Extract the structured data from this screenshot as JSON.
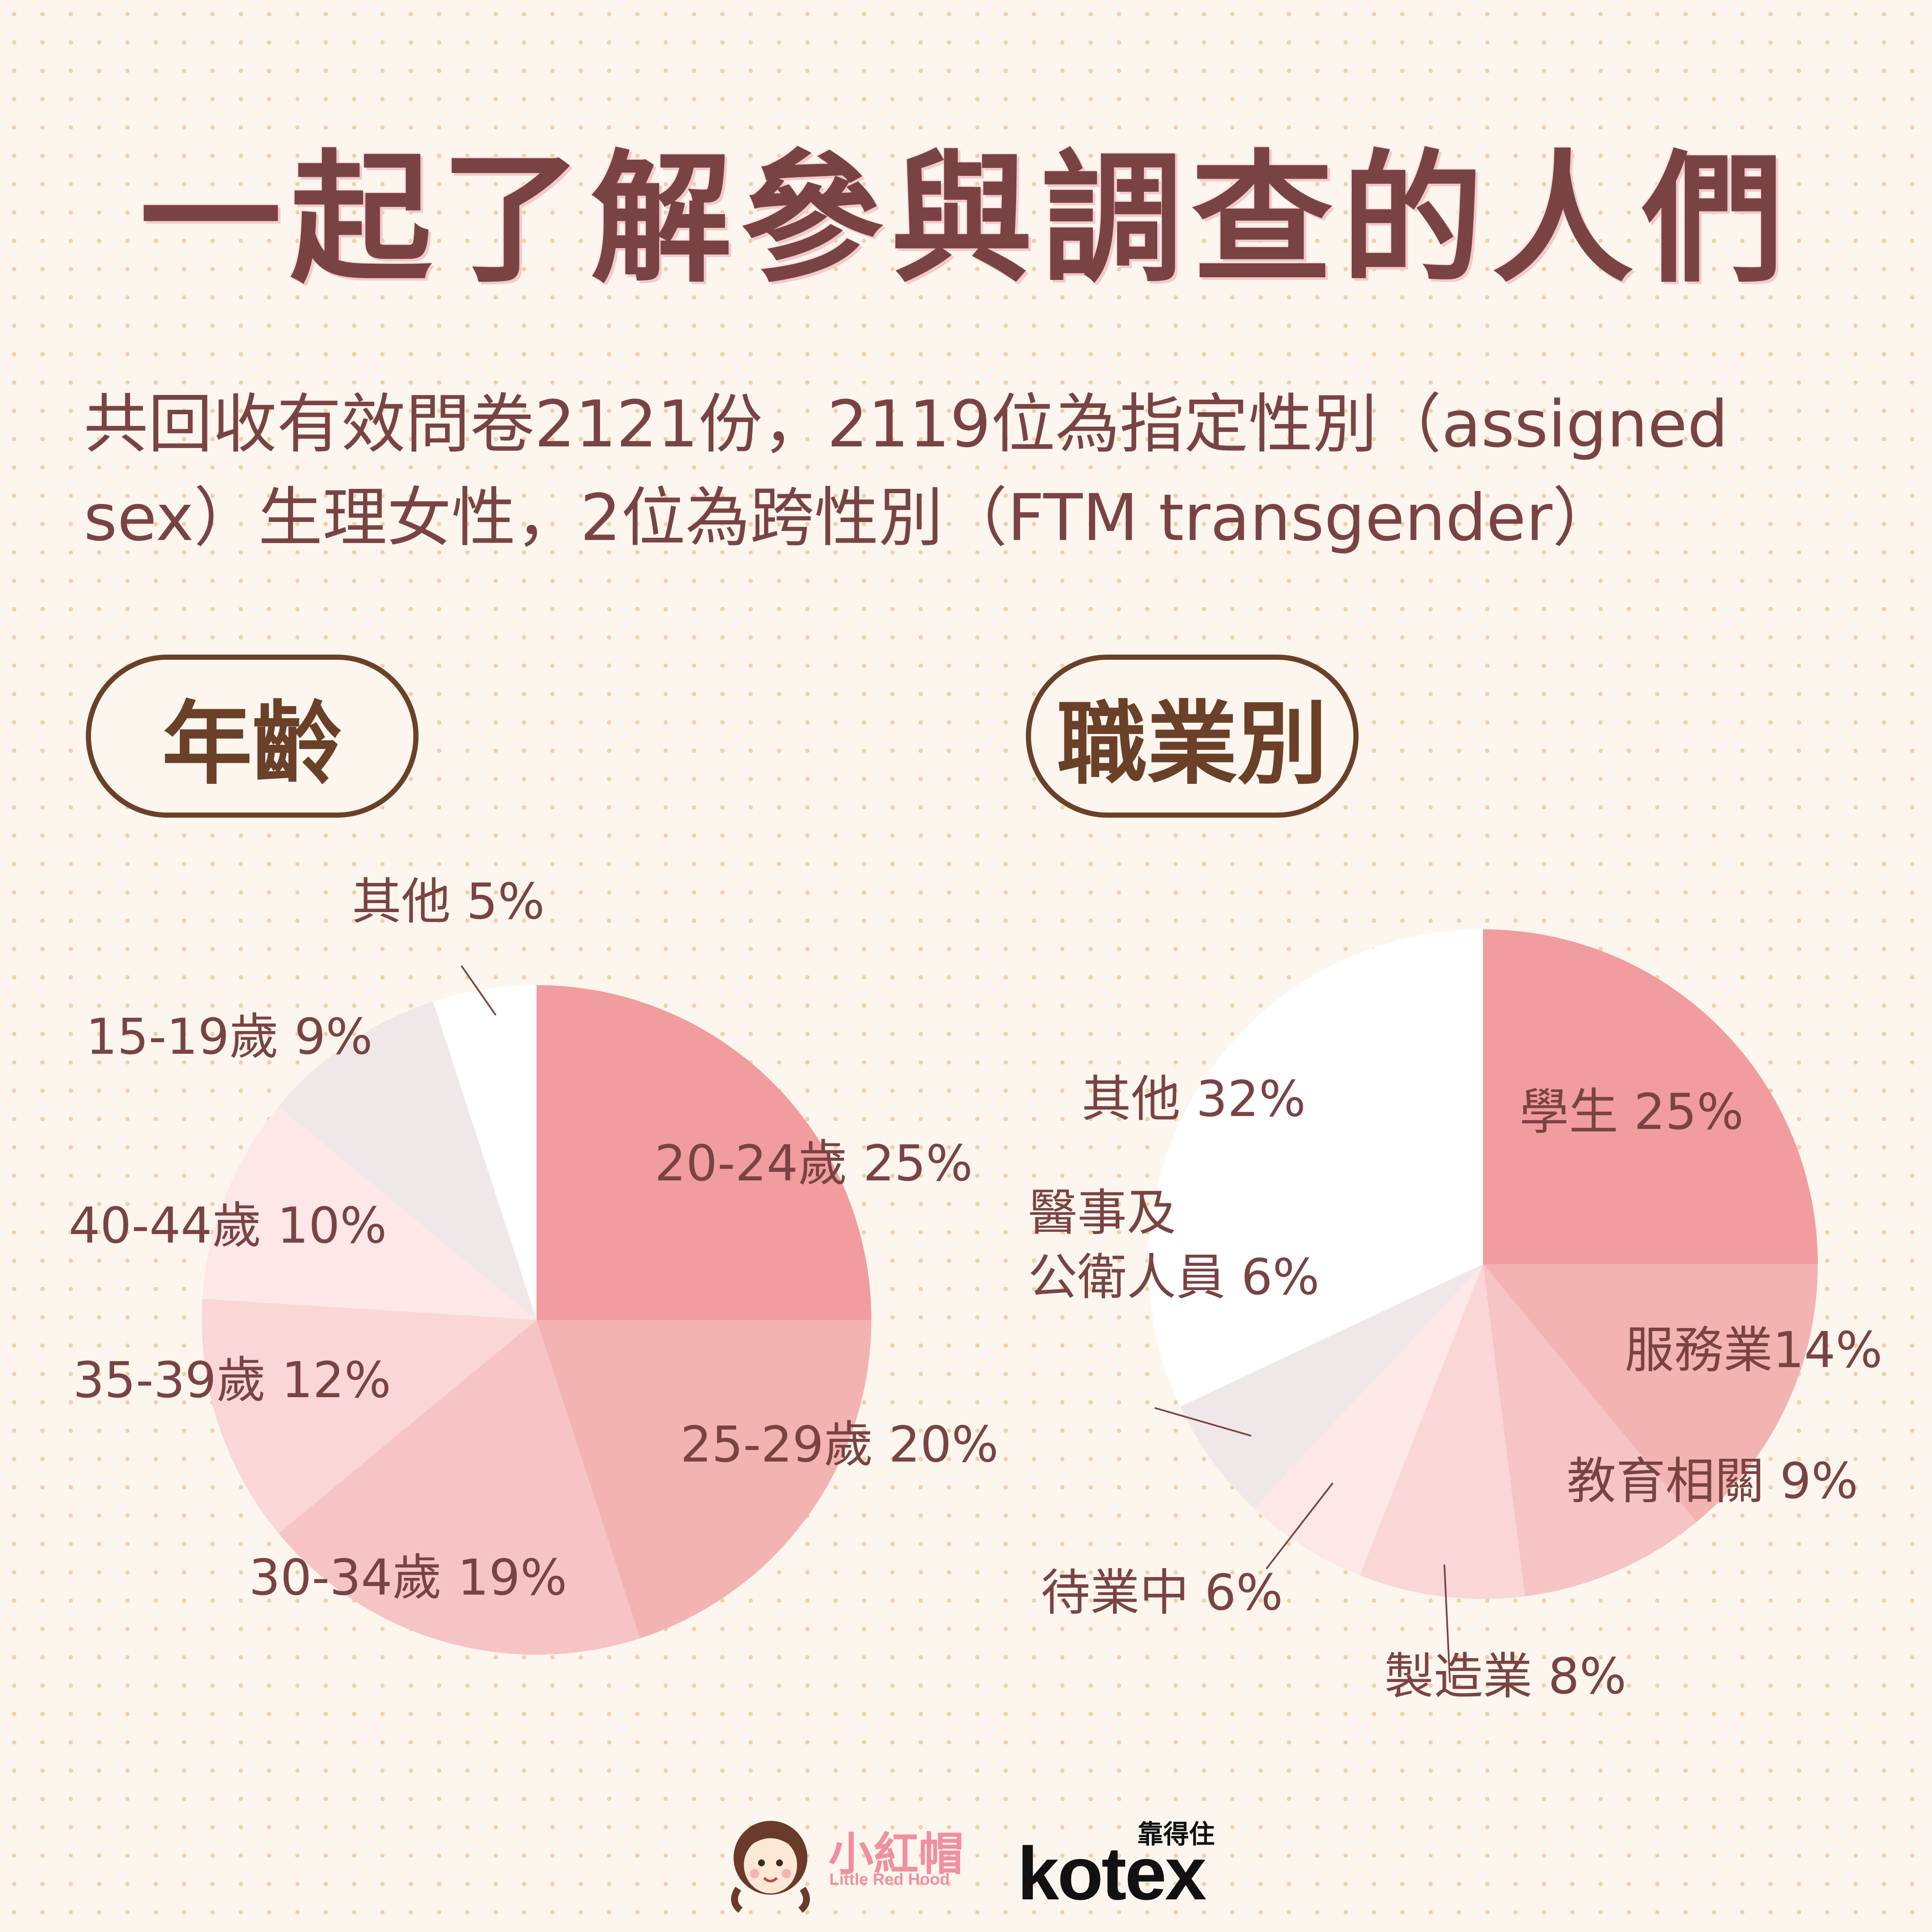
{
  "title": "一起了解參與調查的人們",
  "intro": {
    "line1": "共回收有效問卷2121份，2119位為指定性別（assigned",
    "line2": "sex）生理女性，2位為跨性別（FTM transgender）"
  },
  "labels": {
    "age": "年齡",
    "job": "職業別"
  },
  "colors": {
    "title": "#7a4343",
    "accent": "#6b4028",
    "slice_1": "#f19c9e",
    "slice_2": "#f4b3b3",
    "slice_3": "#f6c4c4",
    "slice_4": "#fad6d6",
    "slice_5": "#fde7e7",
    "slice_6": "#f0e8e8",
    "slice_other": "#ffffff"
  },
  "chart_data": [
    {
      "type": "pie",
      "title": "年齡",
      "slices": [
        {
          "label": "20-24歲",
          "value": 25,
          "text": "20-24歲 25%"
        },
        {
          "label": "25-29歲",
          "value": 20,
          "text": "25-29歲 20%"
        },
        {
          "label": "30-34歲",
          "value": 19,
          "text": "30-34歲 19%"
        },
        {
          "label": "35-39歲",
          "value": 12,
          "text": "35-39歲 12%"
        },
        {
          "label": "40-44歲",
          "value": 10,
          "text": "40-44歲 10%"
        },
        {
          "label": "15-19歲",
          "value": 9,
          "text": "15-19歲 9%"
        },
        {
          "label": "其他",
          "value": 5,
          "text": "其他 5%"
        }
      ]
    },
    {
      "type": "pie",
      "title": "職業別",
      "slices": [
        {
          "label": "學生",
          "value": 25,
          "text": "學生 25%"
        },
        {
          "label": "服務業",
          "value": 14,
          "text": "服務業14%"
        },
        {
          "label": "教育相關",
          "value": 9,
          "text": "教育相關 9%"
        },
        {
          "label": "製造業",
          "value": 8,
          "text": "製造業 8%"
        },
        {
          "label": "待業中",
          "value": 6,
          "text": "待業中 6%"
        },
        {
          "label": "醫事及公衛人員",
          "value": 6,
          "text": "醫事及|公衛人員 6%"
        },
        {
          "label": "其他",
          "value": 32,
          "text": "其他 32%"
        }
      ]
    }
  ],
  "logos": {
    "brand1": "小紅帽",
    "brand1_sub": "Little Red Hood",
    "brand2_top": "靠得住",
    "brand2": "kotex"
  }
}
